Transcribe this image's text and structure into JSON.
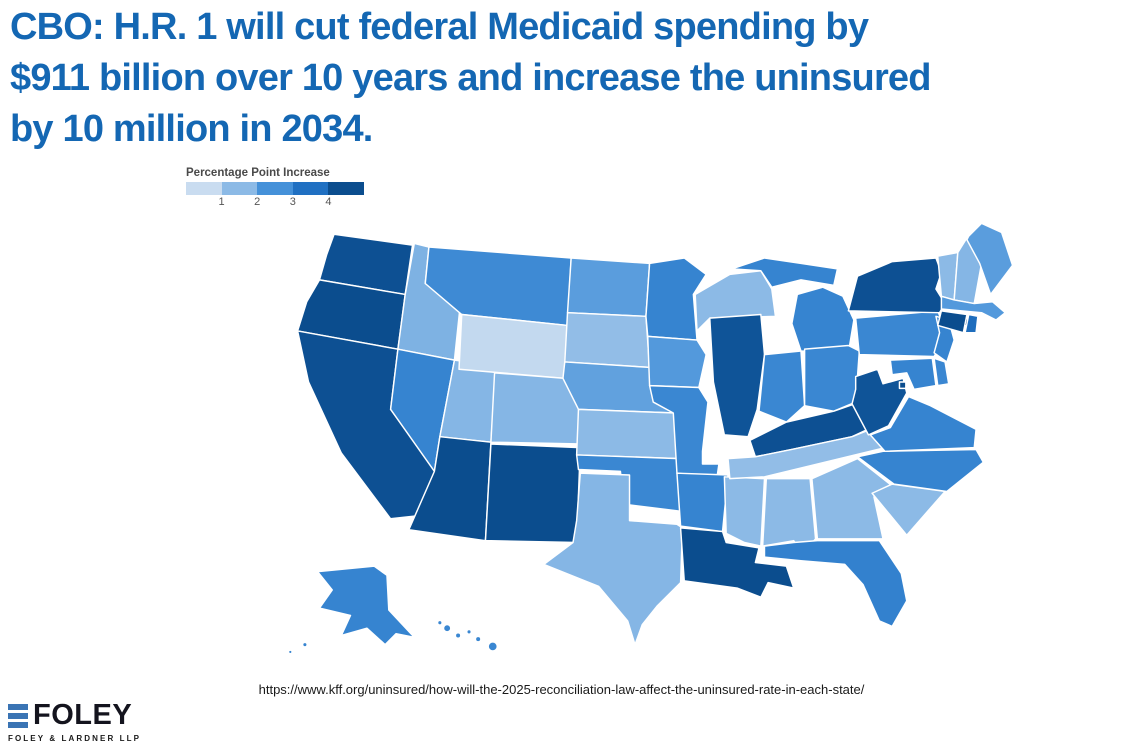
{
  "header": {
    "title_lines": [
      "CBO: H.R. 1 will cut federal Medicaid spending by",
      "$911 billion over 10 years and increase the uninsured",
      "by 10 million in 2034."
    ],
    "title_color": "#1467b3"
  },
  "map": {
    "legend": {
      "title": "Percentage Point Increase",
      "ticks": [
        "1",
        "2",
        "3",
        "4"
      ]
    }
  },
  "chart_data": {
    "type": "heatmap",
    "subtype": "us-state-choropleth",
    "title": "Percentage Point Increase",
    "description": "Percentage point increase in the uninsured rate by state (choropleth shading; darker blue = larger increase)",
    "legend_ticks": [
      1,
      2,
      3,
      4
    ],
    "palette": [
      "#c9dcf0",
      "#8cbae6",
      "#4591d9",
      "#2070c2",
      "#0b4d8e"
    ],
    "palette_stops": [
      0.5,
      1.5,
      2.5,
      3.5,
      4.5
    ],
    "states": {
      "WA": 4.4,
      "OR": 4.5,
      "CA": 4.4,
      "AZ": 4.5,
      "NM": 4.6,
      "LA": 4.6,
      "IL": 4.3,
      "KY": 4.4,
      "WV": 4.3,
      "NY": 4.4,
      "CT": 4.6,
      "DC": 4.7,
      "RI": 3.6,
      "MT": 2.7,
      "NV": 2.9,
      "MN": 2.9,
      "MI": 2.9,
      "MO": 2.8,
      "OK": 2.8,
      "AR": 2.9,
      "IN": 2.8,
      "OH": 2.8,
      "PA": 2.8,
      "NJ": 2.9,
      "VA": 2.9,
      "NC": 2.9,
      "DE": 2.8,
      "MD": 2.9,
      "FL": 3.0,
      "AK": 2.9,
      "HI": 2.8,
      "ND": 2.2,
      "NE": 2.1,
      "IA": 2.3,
      "ME": 2.2,
      "MA": 2.3,
      "ID": 1.7,
      "UT": 1.6,
      "CO": 1.6,
      "SD": 1.4,
      "KS": 1.5,
      "TX": 1.6,
      "WI": 1.5,
      "TN": 1.4,
      "MS": 1.5,
      "AL": 1.5,
      "GA": 1.5,
      "SC": 1.5,
      "VT": 1.5,
      "NH": 1.6,
      "WY": 0.6
    }
  },
  "footer": {
    "source_url": "https://www.kff.org/uninsured/how-will-the-2025-reconciliation-law-affect-the-uninsured-rate-in-each-state/",
    "logo": {
      "name": "FOLEY",
      "subtext": "FOLEY & LARDNER LLP",
      "mark_color": "#3a74b4"
    }
  }
}
